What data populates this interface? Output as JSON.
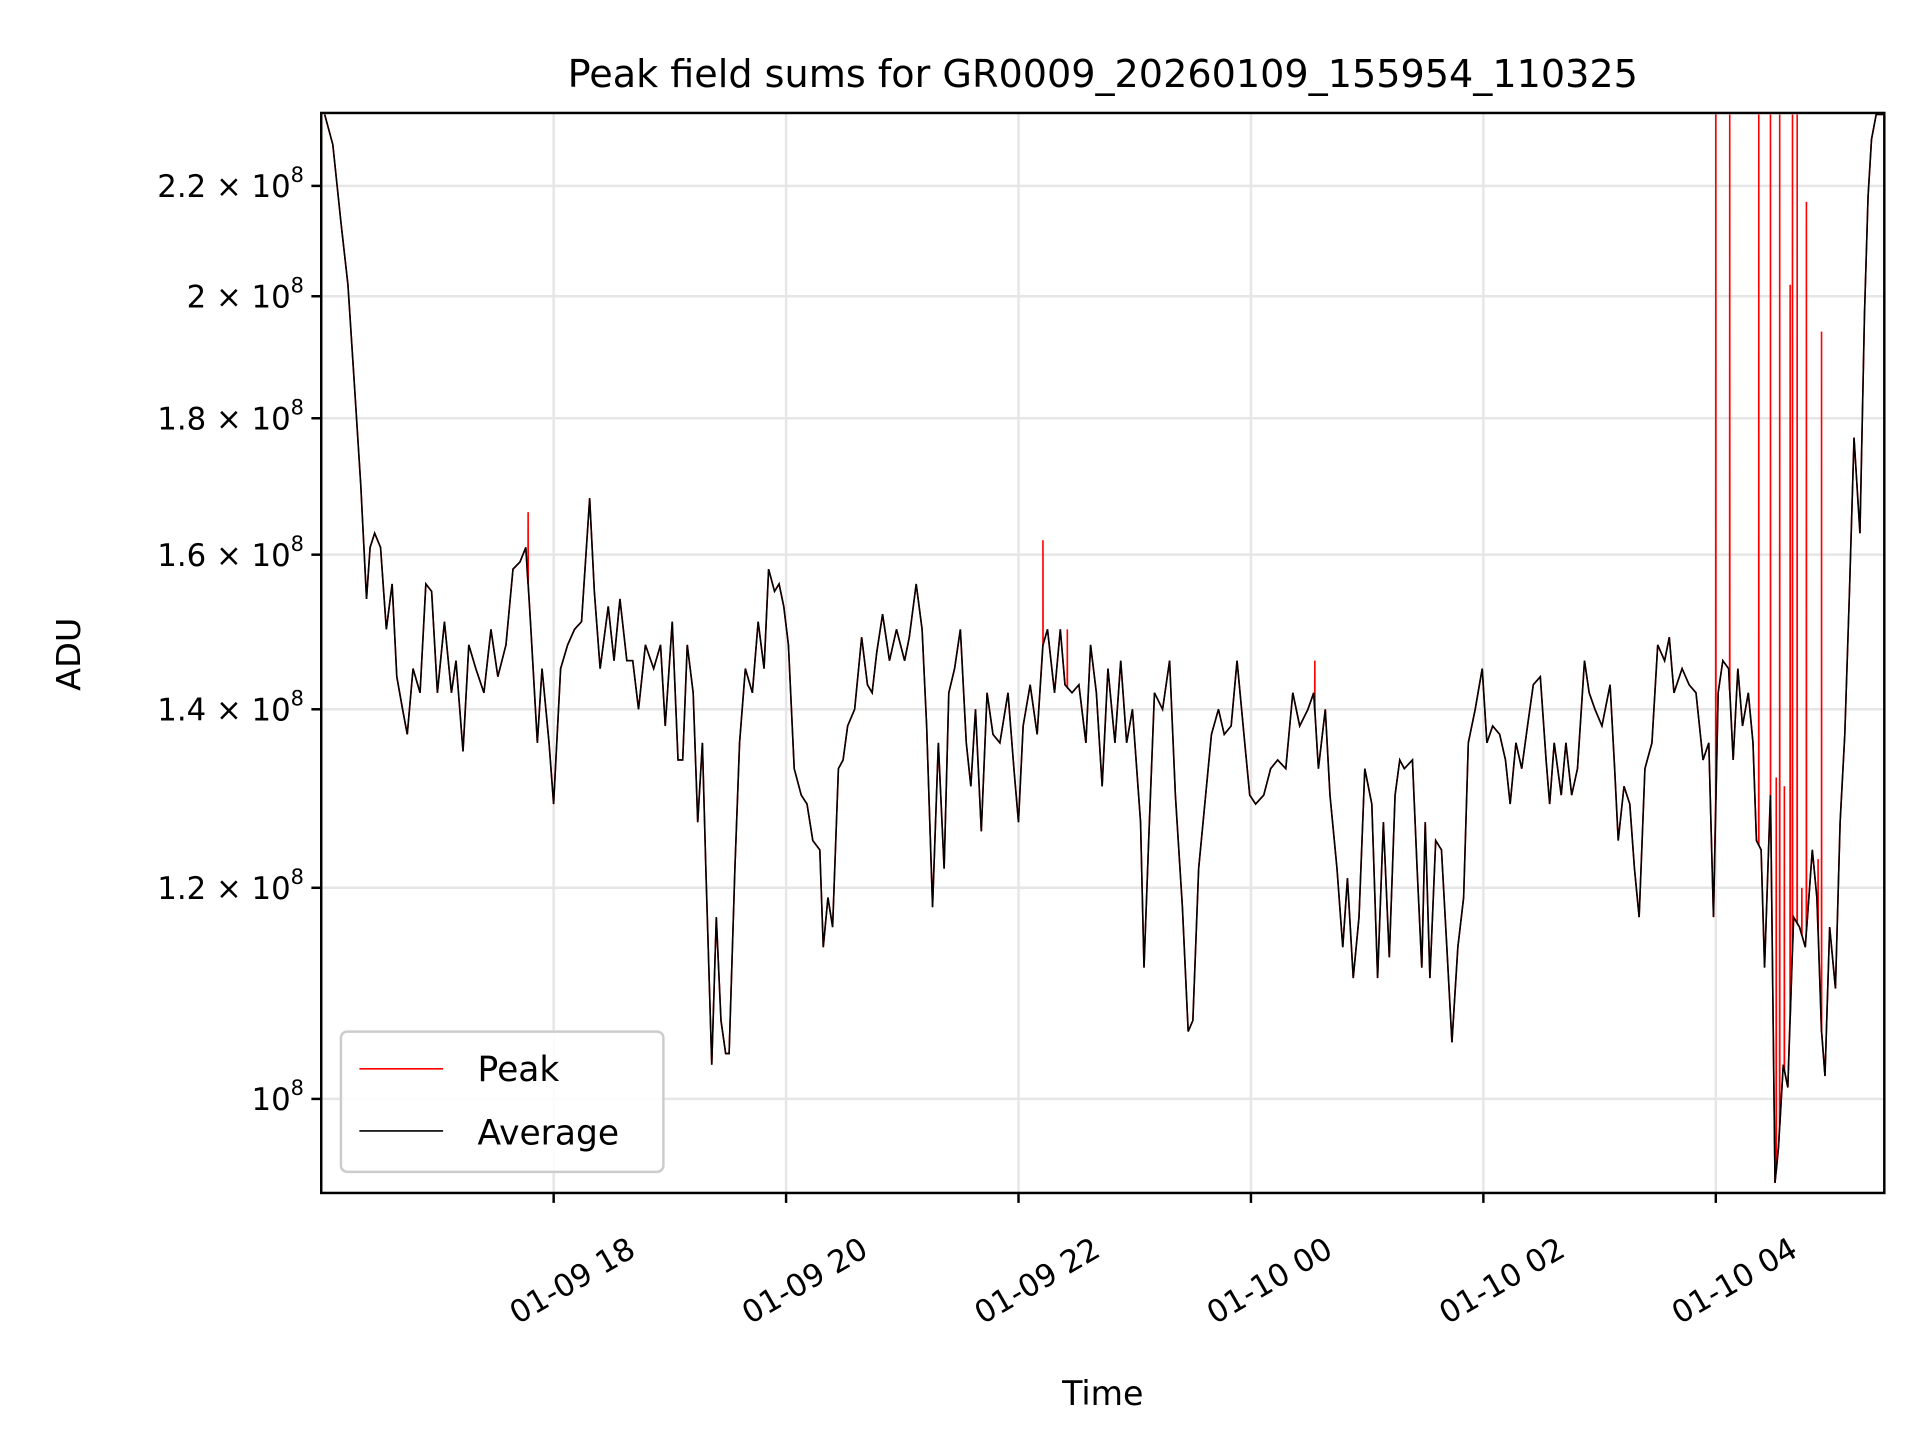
{
  "chart_data": {
    "type": "line",
    "title": "Peak field sums for GR0009_20260109_155954_110325",
    "xlabel": "Time",
    "ylabel": "ADU",
    "yscale": "log",
    "value_unit_multiplier": 100000000,
    "x_unit": "hours since 01-09 00:00",
    "xlim": [
      16.0,
      29.45
    ],
    "ylim": [
      0.922,
      2.343
    ],
    "grid": true,
    "legend_position": "lower-left",
    "x_ticks": [
      {
        "value": 18,
        "label": "01-09 18"
      },
      {
        "value": 20,
        "label": "01-09 20"
      },
      {
        "value": 22,
        "label": "01-09 22"
      },
      {
        "value": 24,
        "label": "01-10 00"
      },
      {
        "value": 26,
        "label": "01-10 02"
      },
      {
        "value": 28,
        "label": "01-10 04"
      }
    ],
    "y_ticks": [
      {
        "value": 1.0,
        "mantissa": "10",
        "exp": "8"
      },
      {
        "value": 1.2,
        "mantissa": "1.2 × 10",
        "exp": "8"
      },
      {
        "value": 1.4,
        "mantissa": "1.4 × 10",
        "exp": "8"
      },
      {
        "value": 1.6,
        "mantissa": "1.6 × 10",
        "exp": "8"
      },
      {
        "value": 1.8,
        "mantissa": "1.8 × 10",
        "exp": "8"
      },
      {
        "value": 2.0,
        "mantissa": "2 × 10",
        "exp": "8"
      },
      {
        "value": 2.2,
        "mantissa": "2.2 × 10",
        "exp": "8"
      }
    ],
    "series": [
      {
        "name": "Peak",
        "color": "#ff0000",
        "description_note": "follows Average with added spikes",
        "spikes": [
          [
            17.78,
            1.66
          ],
          [
            22.21,
            1.62
          ],
          [
            22.42,
            1.5
          ],
          [
            24.55,
            1.46
          ],
          [
            28.0,
            2.34
          ],
          [
            28.12,
            2.34
          ],
          [
            28.37,
            2.34
          ],
          [
            28.47,
            2.34
          ],
          [
            28.52,
            1.32
          ],
          [
            28.55,
            2.34
          ],
          [
            28.59,
            1.31
          ],
          [
            28.64,
            2.02
          ],
          [
            28.66,
            2.34
          ],
          [
            28.7,
            2.34
          ],
          [
            28.74,
            1.2
          ],
          [
            28.78,
            2.17
          ],
          [
            28.88,
            1.23
          ],
          [
            28.91,
            1.94
          ]
        ]
      },
      {
        "name": "Average",
        "color": "#000000",
        "points": [
          [
            16.03,
            2.34
          ],
          [
            16.1,
            2.28
          ],
          [
            16.17,
            2.13
          ],
          [
            16.23,
            2.02
          ],
          [
            16.28,
            1.87
          ],
          [
            16.34,
            1.7
          ],
          [
            16.39,
            1.54
          ],
          [
            16.42,
            1.61
          ],
          [
            16.46,
            1.63
          ],
          [
            16.51,
            1.61
          ],
          [
            16.56,
            1.5
          ],
          [
            16.61,
            1.56
          ],
          [
            16.65,
            1.44
          ],
          [
            16.7,
            1.4
          ],
          [
            16.74,
            1.37
          ],
          [
            16.79,
            1.45
          ],
          [
            16.85,
            1.42
          ],
          [
            16.9,
            1.56
          ],
          [
            16.95,
            1.55
          ],
          [
            17.0,
            1.42
          ],
          [
            17.06,
            1.51
          ],
          [
            17.12,
            1.42
          ],
          [
            17.16,
            1.46
          ],
          [
            17.22,
            1.35
          ],
          [
            17.27,
            1.48
          ],
          [
            17.33,
            1.45
          ],
          [
            17.4,
            1.42
          ],
          [
            17.46,
            1.5
          ],
          [
            17.52,
            1.44
          ],
          [
            17.59,
            1.48
          ],
          [
            17.65,
            1.58
          ],
          [
            17.71,
            1.59
          ],
          [
            17.76,
            1.61
          ],
          [
            17.8,
            1.51
          ],
          [
            17.86,
            1.36
          ],
          [
            17.9,
            1.45
          ],
          [
            17.96,
            1.36
          ],
          [
            18.0,
            1.29
          ],
          [
            18.06,
            1.45
          ],
          [
            18.12,
            1.48
          ],
          [
            18.18,
            1.5
          ],
          [
            18.24,
            1.51
          ],
          [
            18.31,
            1.68
          ],
          [
            18.35,
            1.55
          ],
          [
            18.4,
            1.45
          ],
          [
            18.47,
            1.53
          ],
          [
            18.52,
            1.46
          ],
          [
            18.57,
            1.54
          ],
          [
            18.63,
            1.46
          ],
          [
            18.68,
            1.46
          ],
          [
            18.73,
            1.4
          ],
          [
            18.79,
            1.48
          ],
          [
            18.86,
            1.45
          ],
          [
            18.92,
            1.48
          ],
          [
            18.96,
            1.38
          ],
          [
            19.02,
            1.51
          ],
          [
            19.07,
            1.34
          ],
          [
            19.11,
            1.34
          ],
          [
            19.15,
            1.48
          ],
          [
            19.2,
            1.42
          ],
          [
            19.24,
            1.27
          ],
          [
            19.28,
            1.36
          ],
          [
            19.31,
            1.22
          ],
          [
            19.36,
            1.03
          ],
          [
            19.4,
            1.17
          ],
          [
            19.44,
            1.07
          ],
          [
            19.48,
            1.04
          ],
          [
            19.51,
            1.04
          ],
          [
            19.56,
            1.22
          ],
          [
            19.6,
            1.36
          ],
          [
            19.65,
            1.45
          ],
          [
            19.71,
            1.42
          ],
          [
            19.76,
            1.51
          ],
          [
            19.81,
            1.45
          ],
          [
            19.85,
            1.58
          ],
          [
            19.9,
            1.55
          ],
          [
            19.94,
            1.56
          ],
          [
            19.98,
            1.53
          ],
          [
            20.02,
            1.48
          ],
          [
            20.07,
            1.33
          ],
          [
            20.13,
            1.3
          ],
          [
            20.18,
            1.29
          ],
          [
            20.23,
            1.25
          ],
          [
            20.29,
            1.24
          ],
          [
            20.32,
            1.14
          ],
          [
            20.36,
            1.19
          ],
          [
            20.4,
            1.16
          ],
          [
            20.45,
            1.33
          ],
          [
            20.49,
            1.34
          ],
          [
            20.53,
            1.38
          ],
          [
            20.59,
            1.4
          ],
          [
            20.65,
            1.49
          ],
          [
            20.7,
            1.43
          ],
          [
            20.74,
            1.42
          ],
          [
            20.78,
            1.47
          ],
          [
            20.83,
            1.52
          ],
          [
            20.89,
            1.46
          ],
          [
            20.95,
            1.5
          ],
          [
            21.02,
            1.46
          ],
          [
            21.06,
            1.49
          ],
          [
            21.12,
            1.56
          ],
          [
            21.17,
            1.5
          ],
          [
            21.21,
            1.38
          ],
          [
            21.26,
            1.18
          ],
          [
            21.31,
            1.36
          ],
          [
            21.36,
            1.22
          ],
          [
            21.4,
            1.42
          ],
          [
            21.45,
            1.45
          ],
          [
            21.5,
            1.5
          ],
          [
            21.55,
            1.36
          ],
          [
            21.59,
            1.31
          ],
          [
            21.63,
            1.4
          ],
          [
            21.68,
            1.26
          ],
          [
            21.73,
            1.42
          ],
          [
            21.78,
            1.37
          ],
          [
            21.84,
            1.36
          ],
          [
            21.91,
            1.42
          ],
          [
            21.96,
            1.33
          ],
          [
            22.0,
            1.27
          ],
          [
            22.04,
            1.38
          ],
          [
            22.1,
            1.43
          ],
          [
            22.16,
            1.37
          ],
          [
            22.21,
            1.48
          ],
          [
            22.25,
            1.5
          ],
          [
            22.31,
            1.42
          ],
          [
            22.36,
            1.5
          ],
          [
            22.4,
            1.43
          ],
          [
            22.46,
            1.42
          ],
          [
            22.52,
            1.43
          ],
          [
            22.58,
            1.36
          ],
          [
            22.62,
            1.48
          ],
          [
            22.67,
            1.42
          ],
          [
            22.72,
            1.31
          ],
          [
            22.77,
            1.45
          ],
          [
            22.83,
            1.36
          ],
          [
            22.88,
            1.46
          ],
          [
            22.93,
            1.36
          ],
          [
            22.98,
            1.4
          ],
          [
            23.05,
            1.27
          ],
          [
            23.08,
            1.12
          ],
          [
            23.12,
            1.25
          ],
          [
            23.17,
            1.42
          ],
          [
            23.24,
            1.4
          ],
          [
            23.3,
            1.46
          ],
          [
            23.35,
            1.3
          ],
          [
            23.41,
            1.18
          ],
          [
            23.46,
            1.06
          ],
          [
            23.5,
            1.07
          ],
          [
            23.55,
            1.22
          ],
          [
            23.61,
            1.3
          ],
          [
            23.66,
            1.37
          ],
          [
            23.72,
            1.4
          ],
          [
            23.77,
            1.37
          ],
          [
            23.83,
            1.38
          ],
          [
            23.88,
            1.46
          ],
          [
            23.94,
            1.37
          ],
          [
            23.99,
            1.3
          ],
          [
            24.04,
            1.29
          ],
          [
            24.11,
            1.3
          ],
          [
            24.17,
            1.33
          ],
          [
            24.23,
            1.34
          ],
          [
            24.3,
            1.33
          ],
          [
            24.36,
            1.42
          ],
          [
            24.42,
            1.38
          ],
          [
            24.49,
            1.4
          ],
          [
            24.54,
            1.42
          ],
          [
            24.58,
            1.33
          ],
          [
            24.64,
            1.4
          ],
          [
            24.68,
            1.3
          ],
          [
            24.74,
            1.22
          ],
          [
            24.79,
            1.14
          ],
          [
            24.83,
            1.21
          ],
          [
            24.88,
            1.11
          ],
          [
            24.93,
            1.17
          ],
          [
            24.98,
            1.33
          ],
          [
            25.04,
            1.29
          ],
          [
            25.09,
            1.11
          ],
          [
            25.14,
            1.27
          ],
          [
            25.19,
            1.13
          ],
          [
            25.24,
            1.3
          ],
          [
            25.28,
            1.34
          ],
          [
            25.32,
            1.33
          ],
          [
            25.39,
            1.34
          ],
          [
            25.43,
            1.22
          ],
          [
            25.47,
            1.12
          ],
          [
            25.5,
            1.27
          ],
          [
            25.54,
            1.11
          ],
          [
            25.59,
            1.25
          ],
          [
            25.64,
            1.24
          ],
          [
            25.69,
            1.13
          ],
          [
            25.73,
            1.05
          ],
          [
            25.78,
            1.14
          ],
          [
            25.83,
            1.19
          ],
          [
            25.87,
            1.36
          ],
          [
            25.93,
            1.4
          ],
          [
            25.99,
            1.45
          ],
          [
            26.03,
            1.36
          ],
          [
            26.08,
            1.38
          ],
          [
            26.14,
            1.37
          ],
          [
            26.19,
            1.34
          ],
          [
            26.23,
            1.29
          ],
          [
            26.28,
            1.36
          ],
          [
            26.33,
            1.33
          ],
          [
            26.38,
            1.38
          ],
          [
            26.43,
            1.43
          ],
          [
            26.49,
            1.44
          ],
          [
            26.54,
            1.34
          ],
          [
            26.57,
            1.29
          ],
          [
            26.61,
            1.36
          ],
          [
            26.67,
            1.3
          ],
          [
            26.71,
            1.36
          ],
          [
            26.76,
            1.3
          ],
          [
            26.81,
            1.33
          ],
          [
            26.87,
            1.46
          ],
          [
            26.91,
            1.42
          ],
          [
            26.96,
            1.4
          ],
          [
            27.02,
            1.38
          ],
          [
            27.09,
            1.43
          ],
          [
            27.13,
            1.33
          ],
          [
            27.16,
            1.25
          ],
          [
            27.21,
            1.31
          ],
          [
            27.26,
            1.29
          ],
          [
            27.3,
            1.22
          ],
          [
            27.34,
            1.17
          ],
          [
            27.39,
            1.33
          ],
          [
            27.45,
            1.36
          ],
          [
            27.5,
            1.48
          ],
          [
            27.56,
            1.46
          ],
          [
            27.6,
            1.49
          ],
          [
            27.64,
            1.42
          ],
          [
            27.71,
            1.45
          ],
          [
            27.77,
            1.43
          ],
          [
            27.83,
            1.42
          ],
          [
            27.89,
            1.34
          ],
          [
            27.94,
            1.36
          ],
          [
            27.98,
            1.17
          ],
          [
            28.02,
            1.42
          ],
          [
            28.06,
            1.46
          ],
          [
            28.11,
            1.45
          ],
          [
            28.15,
            1.34
          ],
          [
            28.19,
            1.45
          ],
          [
            28.23,
            1.38
          ],
          [
            28.28,
            1.42
          ],
          [
            28.32,
            1.36
          ],
          [
            28.35,
            1.25
          ],
          [
            28.39,
            1.24
          ],
          [
            28.42,
            1.12
          ],
          [
            28.47,
            1.3
          ],
          [
            28.51,
            0.93
          ],
          [
            28.54,
            0.96
          ],
          [
            28.58,
            1.03
          ],
          [
            28.62,
            1.01
          ],
          [
            28.67,
            1.17
          ],
          [
            28.72,
            1.16
          ],
          [
            28.77,
            1.14
          ],
          [
            28.83,
            1.24
          ],
          [
            28.87,
            1.19
          ],
          [
            28.91,
            1.06
          ],
          [
            28.94,
            1.02
          ],
          [
            28.98,
            1.16
          ],
          [
            29.03,
            1.1
          ],
          [
            29.07,
            1.27
          ],
          [
            29.11,
            1.37
          ],
          [
            29.15,
            1.55
          ],
          [
            29.19,
            1.77
          ],
          [
            29.24,
            1.63
          ],
          [
            29.28,
            1.97
          ],
          [
            29.31,
            2.18
          ],
          [
            29.34,
            2.29
          ],
          [
            29.38,
            2.34
          ],
          [
            29.44,
            2.34
          ]
        ]
      }
    ]
  }
}
